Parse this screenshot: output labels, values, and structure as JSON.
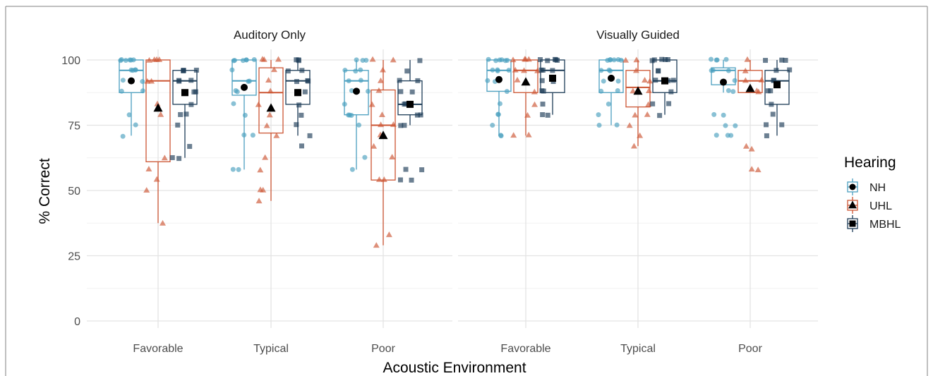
{
  "colors": {
    "NH": "#4a9fbf",
    "UHL": "#cc5533",
    "MBHL": "#1d3c57",
    "grid_major": "#e3e3e3",
    "grid_minor": "#f1f1f1",
    "mean_marker": "#000000"
  },
  "chart_data": {
    "type": "box",
    "x_label": "Acoustic Environment",
    "y_label": "% Correct",
    "ylim": [
      0,
      100
    ],
    "y_ticks": [
      "0",
      "25",
      "50",
      "75",
      "100"
    ],
    "categories": [
      "Favorable",
      "Typical",
      "Poor"
    ],
    "grid": true,
    "legend": {
      "title": "Hearing",
      "position": "right",
      "entries": [
        {
          "group": "NH",
          "label": "NH",
          "marker": "circle"
        },
        {
          "group": "UHL",
          "label": "UHL",
          "marker": "triangle"
        },
        {
          "group": "MBHL",
          "label": "MBHL",
          "marker": "square"
        }
      ]
    },
    "panels": [
      {
        "title": "Auditory Only",
        "boxes": [
          {
            "category": "Favorable",
            "group": "NH",
            "min": 71,
            "q1": 87.5,
            "median": 96,
            "q3": 100,
            "max": 100,
            "mean": 92,
            "points": [
              100,
              100,
              100,
              100,
              100,
              100,
              96,
              96,
              96,
              96,
              92,
              92,
              88,
              88,
              79,
              75,
              71
            ]
          },
          {
            "category": "Favorable",
            "group": "UHL",
            "min": 37.5,
            "q1": 61,
            "median": 92,
            "q3": 100,
            "max": 100,
            "mean": 81.5,
            "points": [
              100,
              100,
              100,
              100,
              92,
              92,
              83,
              79,
              62.5,
              58,
              54,
              50,
              37.5
            ]
          },
          {
            "category": "Favorable",
            "group": "MBHL",
            "min": 62.5,
            "q1": 83,
            "median": 92,
            "q3": 96,
            "max": 96,
            "mean": 87.5,
            "points": [
              96,
              96,
              96,
              96,
              92,
              92,
              92,
              88,
              88,
              83,
              79,
              79,
              75,
              67,
              62.5,
              62.5
            ]
          },
          {
            "category": "Typical",
            "group": "NH",
            "min": 58,
            "q1": 86.5,
            "median": 92,
            "q3": 100,
            "max": 100,
            "mean": 89.5,
            "points": [
              100,
              100,
              100,
              100,
              100,
              100,
              96,
              92,
              92,
              88,
              88,
              83,
              79,
              71,
              71,
              58,
              58
            ]
          },
          {
            "category": "Typical",
            "group": "UHL",
            "min": 46,
            "q1": 72,
            "median": 87.5,
            "q3": 97,
            "max": 100,
            "mean": 81.5,
            "points": [
              100,
              100,
              100,
              96,
              92,
              88,
              83,
              79,
              75,
              71,
              62.5,
              58,
              50,
              50,
              46
            ]
          },
          {
            "category": "Typical",
            "group": "MBHL",
            "min": 71,
            "q1": 83,
            "median": 92,
            "q3": 96,
            "max": 100,
            "mean": 87.5,
            "points": [
              100,
              100,
              100,
              96,
              96,
              92,
              92,
              92,
              88,
              88,
              83,
              79,
              75,
              71,
              67
            ]
          },
          {
            "category": "Poor",
            "group": "NH",
            "min": 58,
            "q1": 79,
            "median": 92,
            "q3": 96,
            "max": 100,
            "mean": 88,
            "points": [
              100,
              100,
              100,
              96,
              96,
              96,
              92,
              92,
              88,
              88,
              83,
              79,
              79,
              79,
              75,
              62.5,
              58
            ]
          },
          {
            "category": "Poor",
            "group": "UHL",
            "min": 29,
            "q1": 54,
            "median": 75,
            "q3": 88.5,
            "max": 100,
            "mean": 71,
            "points": [
              100,
              100,
              96,
              92,
              88,
              83,
              79,
              75,
              75,
              71,
              67,
              62.5,
              54,
              54,
              33,
              29
            ]
          },
          {
            "category": "Poor",
            "group": "MBHL",
            "min": 75,
            "q1": 79,
            "median": 83,
            "q3": 92,
            "max": 100,
            "mean": 83,
            "points": [
              100,
              96,
              92,
              92,
              88,
              88,
              83,
              83,
              79,
              79,
              75,
              75,
              58,
              58,
              54,
              54
            ]
          }
        ]
      },
      {
        "title": "Visually Guided",
        "boxes": [
          {
            "category": "Favorable",
            "group": "NH",
            "min": 71,
            "q1": 88,
            "median": 96,
            "q3": 100,
            "max": 100,
            "mean": 92.5,
            "points": [
              100,
              100,
              100,
              100,
              100,
              100,
              96,
              96,
              96,
              96,
              92,
              92,
              88,
              83,
              79,
              79,
              75,
              71,
              71
            ]
          },
          {
            "category": "Favorable",
            "group": "UHL",
            "min": 71,
            "q1": 87.5,
            "median": 96,
            "q3": 100,
            "max": 100,
            "mean": 91.5,
            "points": [
              100,
              100,
              100,
              100,
              96,
              96,
              96,
              92,
              88,
              83,
              79,
              71,
              71
            ]
          },
          {
            "category": "Favorable",
            "group": "MBHL",
            "min": 79,
            "q1": 87.5,
            "median": 96,
            "q3": 100,
            "max": 100,
            "mean": 93,
            "points": [
              100,
              100,
              100,
              100,
              100,
              96,
              96,
              96,
              92,
              92,
              88,
              88,
              83,
              79,
              79
            ]
          },
          {
            "category": "Typical",
            "group": "NH",
            "min": 75,
            "q1": 87.5,
            "median": 96,
            "q3": 100,
            "max": 100,
            "mean": 93,
            "points": [
              100,
              100,
              100,
              100,
              100,
              100,
              96,
              96,
              96,
              92,
              92,
              88,
              88,
              83,
              79,
              75,
              75
            ]
          },
          {
            "category": "Typical",
            "group": "UHL",
            "min": 67,
            "q1": 82,
            "median": 89.5,
            "q3": 96,
            "max": 100,
            "mean": 88,
            "points": [
              100,
              100,
              96,
              92,
              92,
              88,
              88,
              83,
              79,
              79,
              75,
              71,
              67
            ]
          },
          {
            "category": "Typical",
            "group": "MBHL",
            "min": 79,
            "q1": 87.5,
            "median": 92,
            "q3": 100,
            "max": 100,
            "mean": 92,
            "points": [
              100,
              100,
              100,
              100,
              100,
              96,
              96,
              92,
              92,
              92,
              88,
              83,
              83,
              79
            ]
          },
          {
            "category": "Poor",
            "group": "NH",
            "min": 87.5,
            "q1": 90.5,
            "median": 96,
            "q3": 97,
            "max": 100,
            "mean": 91.5,
            "points": [
              100,
              100,
              100,
              100,
              96,
              96,
              96,
              92,
              88,
              88,
              79,
              79,
              75,
              75,
              71,
              71,
              71
            ]
          },
          {
            "category": "Poor",
            "group": "UHL",
            "min": 87.5,
            "q1": 87.5,
            "median": 92,
            "q3": 96,
            "max": 100,
            "mean": 89,
            "points": [
              100,
              96,
              92,
              92,
              88,
              88,
              67,
              66,
              58,
              58
            ]
          },
          {
            "category": "Poor",
            "group": "MBHL",
            "min": 71,
            "q1": 83,
            "median": 92,
            "q3": 96,
            "max": 100,
            "mean": 90.5,
            "points": [
              100,
              100,
              100,
              96,
              96,
              92,
              92,
              88,
              88,
              83,
              79,
              75,
              75,
              71
            ]
          }
        ]
      }
    ]
  }
}
